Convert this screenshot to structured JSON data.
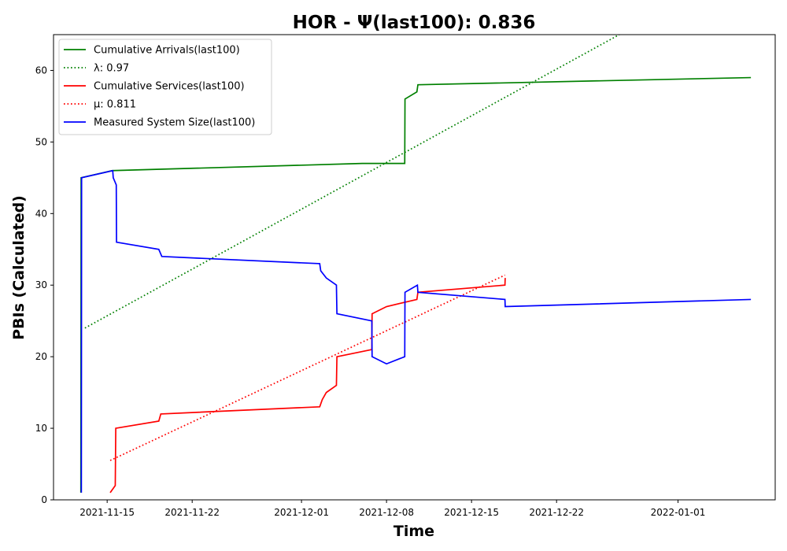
{
  "chart_data": {
    "type": "line",
    "title": "HOR -  Ψ(last100): 0.836",
    "xlabel": "Time",
    "ylabel": "PBIs (Calculated)",
    "x_type": "date",
    "xlim": [
      "2021-11-10T14:00",
      "2022-01-09T00:00"
    ],
    "ylim": [
      0,
      65
    ],
    "x_ticks": [
      "2021-11-15",
      "2021-11-22",
      "2021-12-01",
      "2021-12-08",
      "2021-12-15",
      "2021-12-22",
      "2022-01-01"
    ],
    "y_ticks": [
      0,
      10,
      20,
      30,
      40,
      50,
      60
    ],
    "grid": false,
    "legend_position": "top-left",
    "series": [
      {
        "name": "Cumulative Arrivals(last100)",
        "color": "#008000",
        "style": "solid",
        "points": [
          [
            "2021-11-12T20:00",
            1
          ],
          [
            "2021-11-12T20:30",
            45
          ],
          [
            "2021-11-15T10:00",
            46
          ],
          [
            "2021-12-06T00:00",
            47
          ],
          [
            "2021-12-09T12:00",
            47
          ],
          [
            "2021-12-09T12:30",
            56
          ],
          [
            "2021-12-10T12:00",
            57
          ],
          [
            "2021-12-10T14:00",
            58
          ],
          [
            "2022-01-07T00:00",
            59
          ]
        ]
      },
      {
        "name": "λ: 0.97",
        "color": "#008000",
        "style": "dotted",
        "points": [
          [
            "2021-11-13T04:00",
            24
          ],
          [
            "2021-12-27T04:00",
            65
          ]
        ]
      },
      {
        "name": "Cumulative Services(last100)",
        "color": "#ff0000",
        "style": "solid",
        "points": [
          [
            "2021-11-15T06:00",
            1
          ],
          [
            "2021-11-15T16:00",
            2
          ],
          [
            "2021-11-15T17:00",
            10
          ],
          [
            "2021-11-19T06:00",
            11
          ],
          [
            "2021-11-19T10:00",
            12
          ],
          [
            "2021-12-02T12:00",
            13
          ],
          [
            "2021-12-02T17:00",
            14
          ],
          [
            "2021-12-03T01:00",
            15
          ],
          [
            "2021-12-03T21:00",
            16
          ],
          [
            "2021-12-03T22:00",
            20
          ],
          [
            "2021-12-06T19:00",
            21
          ],
          [
            "2021-12-06T19:30",
            26
          ],
          [
            "2021-12-08T00:00",
            27
          ],
          [
            "2021-12-10T12:00",
            28
          ],
          [
            "2021-12-10T14:00",
            29
          ],
          [
            "2021-12-17T18:00",
            30
          ],
          [
            "2021-12-17T18:30",
            31
          ]
        ]
      },
      {
        "name": "μ: 0.811",
        "color": "#ff0000",
        "style": "dotted",
        "points": [
          [
            "2021-11-15T06:00",
            5.5
          ],
          [
            "2021-12-17T18:00",
            31.4
          ]
        ]
      },
      {
        "name": "Measured System Size(last100)",
        "color": "#0000ff",
        "style": "solid",
        "points": [
          [
            "2021-11-12T21:00",
            1
          ],
          [
            "2021-11-12T21:30",
            45
          ],
          [
            "2021-11-15T11:00",
            46
          ],
          [
            "2021-11-15T12:00",
            45
          ],
          [
            "2021-11-15T18:00",
            44
          ],
          [
            "2021-11-15T18:30",
            36
          ],
          [
            "2021-11-19T06:00",
            35
          ],
          [
            "2021-11-19T12:00",
            34
          ],
          [
            "2021-12-02T12:00",
            33
          ],
          [
            "2021-12-02T14:00",
            32
          ],
          [
            "2021-12-03T01:00",
            31
          ],
          [
            "2021-12-03T21:00",
            30
          ],
          [
            "2021-12-03T22:00",
            26
          ],
          [
            "2021-12-06T19:00",
            25
          ],
          [
            "2021-12-06T19:30",
            20
          ],
          [
            "2021-12-08T00:00",
            19
          ],
          [
            "2021-12-09T12:00",
            20
          ],
          [
            "2021-12-09T12:30",
            29
          ],
          [
            "2021-12-10T13:00",
            30
          ],
          [
            "2021-12-10T14:00",
            29
          ],
          [
            "2021-12-17T18:00",
            28
          ],
          [
            "2021-12-17T18:30",
            27
          ],
          [
            "2022-01-07T00:00",
            28
          ]
        ]
      }
    ]
  }
}
